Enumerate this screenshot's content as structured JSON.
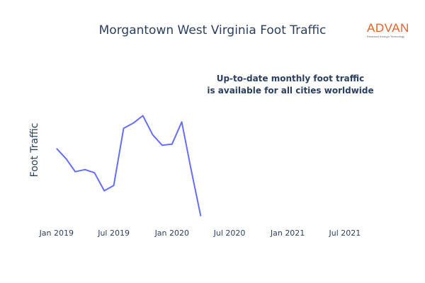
{
  "chart_data": {
    "type": "line",
    "title": "Morgantown West Virginia Foot Traffic",
    "ylabel": "Foot Traffic",
    "xlabel": "",
    "x_ticks": [
      "Jan 2019",
      "Jul 2019",
      "Jan 2020",
      "Jul 2020",
      "Jan 2021",
      "Jul 2021"
    ],
    "x_range": [
      "2018-12-01",
      "2021-10-01"
    ],
    "y_range": [
      0,
      107
    ],
    "y_ticks_shown": false,
    "grid": false,
    "legend": "none",
    "annotation": [
      "Up-to-date monthly foot traffic",
      "is available for all cities worldwide"
    ],
    "series": [
      {
        "color": "#636efa",
        "x": [
          "2019-01-01",
          "2019-02-01",
          "2019-03-01",
          "2019-04-01",
          "2019-05-01",
          "2019-06-01",
          "2019-07-01",
          "2019-08-01",
          "2019-09-01",
          "2019-10-01",
          "2019-11-01",
          "2019-12-01",
          "2020-01-01",
          "2020-02-01",
          "2020-03-01",
          "2020-04-01"
        ],
        "y": [
          67,
          57,
          45,
          47,
          44,
          27,
          32,
          86,
          91,
          98,
          80,
          70,
          71,
          92,
          48,
          3
        ]
      }
    ]
  },
  "logo": {
    "name": "ADVAN",
    "tagline": "Research through Technology",
    "brand_color": "#e9602b"
  },
  "colors": {
    "text": "#2a3f5f",
    "line": "#636efa",
    "background": "#ffffff"
  }
}
